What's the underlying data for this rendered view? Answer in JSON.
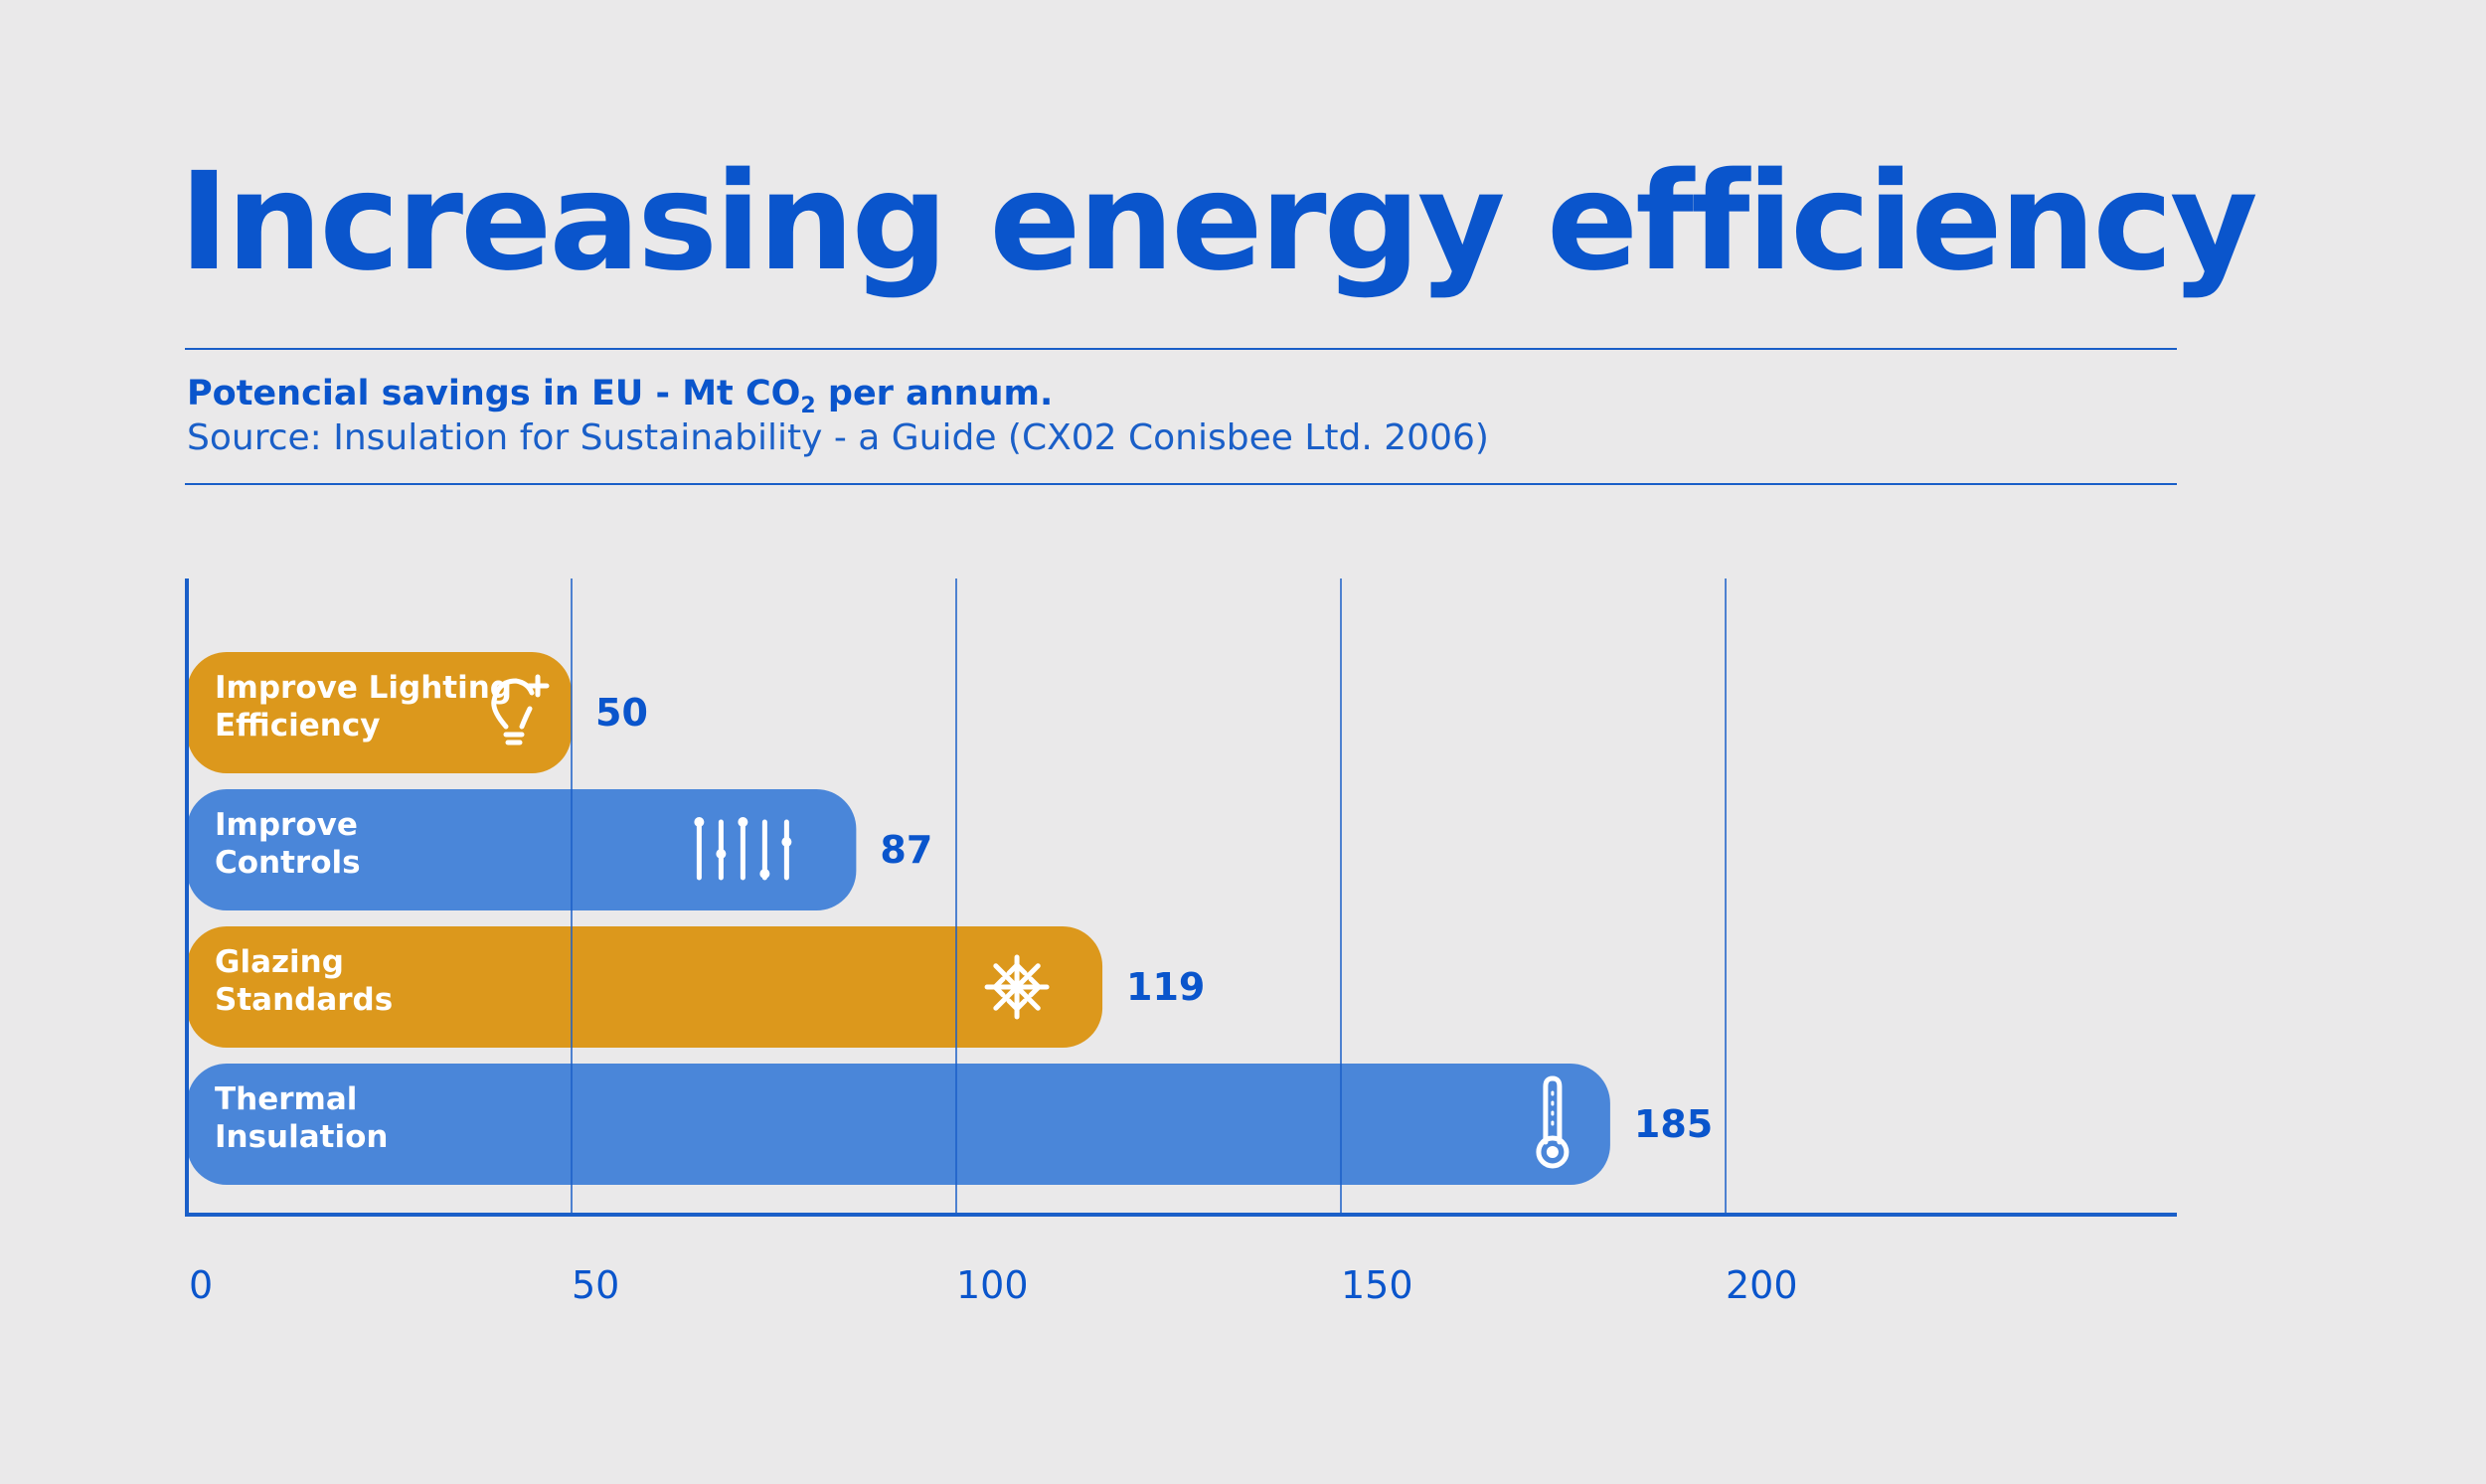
{
  "title": "Increasing energy efficiency",
  "subtitle_main": "Potencial savings in EU - Mt CO",
  "subtitle_sub": "2",
  "subtitle_rest": " per annum.",
  "source": "Source: Insulation for Sustainability - a Guide (CX02 Conisbee Ltd. 2006)",
  "colors": {
    "blue": "#4a86d9",
    "orange": "#dc981c",
    "accent": "#0a55cc"
  },
  "chart_data": {
    "type": "bar",
    "orientation": "horizontal",
    "xlim": [
      0,
      250
    ],
    "xticks": [
      0,
      50,
      100,
      150,
      200
    ],
    "grid": true,
    "bars": [
      {
        "label_lines": [
          "Improve Lighting",
          "Efficiency"
        ],
        "value": 50,
        "color": "#dc981c",
        "icon": "lightbulb-icon"
      },
      {
        "label_lines": [
          "Improve",
          "Controls"
        ],
        "value": 87,
        "color": "#4a86d9",
        "icon": "sliders-icon"
      },
      {
        "label_lines": [
          "Glazing",
          "Standards"
        ],
        "value": 119,
        "color": "#dc981c",
        "icon": "snowflake-icon"
      },
      {
        "label_lines": [
          "Thermal",
          "Insulation"
        ],
        "value": 185,
        "color": "#4a86d9",
        "icon": "thermometer-icon"
      }
    ]
  }
}
